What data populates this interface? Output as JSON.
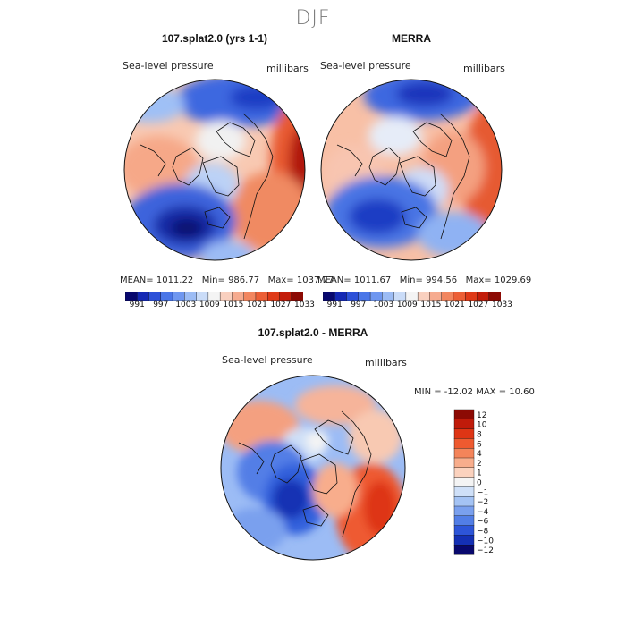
{
  "season": "DJF",
  "panels": [
    {
      "title": "107.splat2.0 (yrs 1-1)",
      "variable": "Sea-level pressure",
      "units": "millibars",
      "mean_label": "MEAN=",
      "mean": "1011.22",
      "min_label": "Min=",
      "min": "986.77",
      "max_label": "Max=",
      "max": "1037.77"
    },
    {
      "title": "MERRA",
      "variable": "Sea-level pressure",
      "units": "millibars",
      "mean_label": "MEAN=",
      "mean": "1011.67",
      "min_label": "Min=",
      "min": "994.56",
      "max_label": "Max=",
      "max": "1029.69"
    },
    {
      "title": "107.splat2.0 - MERRA",
      "variable": "Sea-level pressure",
      "units": "millibars",
      "minmax_text": "MIN = -12.02 MAX =  10.60"
    }
  ],
  "colorbar_abs": {
    "ticks": [
      "991",
      "997",
      "1003",
      "1009",
      "1015",
      "1021",
      "1027",
      "1033"
    ],
    "colors": [
      "#08086e",
      "#1428b4",
      "#2c50d8",
      "#4a76e8",
      "#6f97f0",
      "#9cbcf5",
      "#cadcf8",
      "#f4f4f4",
      "#f9d0bf",
      "#f6ab8f",
      "#f2865f",
      "#ec5f36",
      "#df3a18",
      "#c31d0a",
      "#8c0a04"
    ]
  },
  "colorbar_diff": {
    "ticks": [
      "12",
      "10",
      "8",
      "6",
      "4",
      "2",
      "1",
      "0",
      "−1",
      "−2",
      "−4",
      "−6",
      "−8",
      "−10",
      "−12"
    ],
    "colors": [
      "#8c0a04",
      "#c01b0a",
      "#de3515",
      "#ee5a30",
      "#f4845a",
      "#f8ad8c",
      "#fbd2be",
      "#f4f4f4",
      "#cfe0f8",
      "#a4c3f4",
      "#7aa0ee",
      "#527ee6",
      "#2d55d8",
      "#1430b4",
      "#08086e"
    ]
  }
}
